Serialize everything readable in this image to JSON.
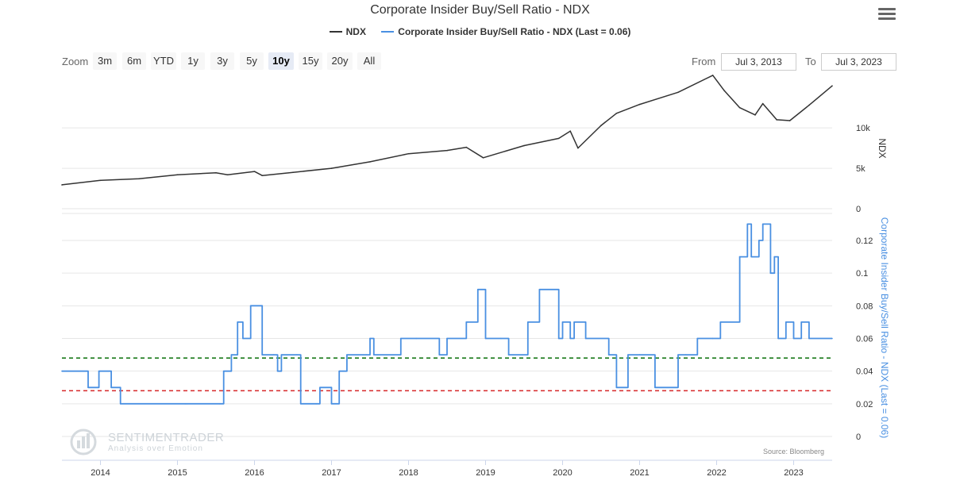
{
  "title": "Corporate Insider Buy/Sell Ratio - NDX",
  "legend": [
    {
      "name": "NDX",
      "color": "#333333"
    },
    {
      "name": "Corporate Insider Buy/Sell Ratio - NDX (Last = 0.06)",
      "color": "#4a90e2"
    }
  ],
  "menu_icon": "hamburger-menu-icon",
  "zoom": {
    "label": "Zoom",
    "buttons": [
      "3m",
      "6m",
      "YTD",
      "1y",
      "3y",
      "5y",
      "10y",
      "15y",
      "20y",
      "All"
    ],
    "active": "10y"
  },
  "range": {
    "from_label": "From",
    "from_value": "Jul 3, 2013",
    "to_label": "To",
    "to_value": "Jul 3, 2023"
  },
  "watermark": {
    "name": "SENTIMENTRADER",
    "tagline": "Analysis over Emotion"
  },
  "source": "Source: Bloomberg",
  "chart_data": [
    {
      "type": "line",
      "name": "NDX",
      "ylabel": "NDX",
      "ylim": [
        0,
        16000
      ],
      "yticks": [
        {
          "value": 0,
          "label": "0"
        },
        {
          "value": 5000,
          "label": "5k"
        },
        {
          "value": 10000,
          "label": "10k"
        }
      ],
      "x": [
        2013.5,
        2014.0,
        2014.5,
        2015.0,
        2015.5,
        2015.65,
        2016.0,
        2016.1,
        2016.5,
        2017.0,
        2017.5,
        2018.0,
        2018.5,
        2018.75,
        2018.97,
        2019.5,
        2019.95,
        2020.1,
        2020.2,
        2020.5,
        2020.7,
        2021.0,
        2021.5,
        2021.95,
        2022.1,
        2022.3,
        2022.5,
        2022.6,
        2022.78,
        2022.95,
        2023.2,
        2023.5
      ],
      "y": [
        2950,
        3500,
        3700,
        4200,
        4450,
        4200,
        4600,
        4100,
        4500,
        5000,
        5800,
        6800,
        7200,
        7600,
        6300,
        7800,
        8700,
        9600,
        7500,
        10300,
        11800,
        12900,
        14400,
        16500,
        14600,
        12500,
        11600,
        13000,
        11000,
        10900,
        12800,
        15200
      ]
    },
    {
      "type": "line",
      "name": "Corporate Insider Buy/Sell Ratio - NDX (Last = 0.06)",
      "ylabel": "Corporate Insider Buy/Sell Ratio - NDX (Last = 0.06)",
      "ylim": [
        0,
        0.13
      ],
      "yticks": [
        {
          "value": 0,
          "label": "0"
        },
        {
          "value": 0.02,
          "label": "0.02"
        },
        {
          "value": 0.04,
          "label": "0.04"
        },
        {
          "value": 0.06,
          "label": "0.06"
        },
        {
          "value": 0.08,
          "label": "0.08"
        },
        {
          "value": 0.1,
          "label": "0.1"
        },
        {
          "value": 0.12,
          "label": "0.12"
        }
      ],
      "x": [
        2013.5,
        2013.82,
        2013.84,
        2013.96,
        2013.98,
        2014.12,
        2014.14,
        2014.24,
        2014.26,
        2015.1,
        2015.12,
        2015.55,
        2015.6,
        2015.7,
        2015.78,
        2015.85,
        2015.95,
        2016.1,
        2016.25,
        2016.3,
        2016.35,
        2016.55,
        2016.6,
        2016.8,
        2016.85,
        2016.95,
        2017.0,
        2017.1,
        2017.15,
        2017.2,
        2017.45,
        2017.5,
        2017.55,
        2017.9,
        2018.1,
        2018.4,
        2018.5,
        2018.75,
        2018.9,
        2019.0,
        2019.2,
        2019.3,
        2019.55,
        2019.7,
        2019.75,
        2019.95,
        2020.0,
        2020.1,
        2020.15,
        2020.3,
        2020.6,
        2020.7,
        2020.85,
        2021.0,
        2021.2,
        2021.5,
        2021.6,
        2021.75,
        2021.95,
        2022.05,
        2022.3,
        2022.4,
        2022.45,
        2022.55,
        2022.6,
        2022.7,
        2022.75,
        2022.8,
        2022.9,
        2023.0,
        2023.1,
        2023.2,
        2023.5
      ],
      "y": [
        0.04,
        0.04,
        0.03,
        0.03,
        0.04,
        0.04,
        0.03,
        0.03,
        0.02,
        0.02,
        0.02,
        0.02,
        0.04,
        0.05,
        0.07,
        0.06,
        0.08,
        0.05,
        0.05,
        0.04,
        0.05,
        0.05,
        0.02,
        0.02,
        0.03,
        0.03,
        0.02,
        0.04,
        0.04,
        0.05,
        0.05,
        0.06,
        0.05,
        0.06,
        0.06,
        0.05,
        0.06,
        0.07,
        0.09,
        0.06,
        0.06,
        0.05,
        0.07,
        0.09,
        0.09,
        0.06,
        0.07,
        0.06,
        0.07,
        0.06,
        0.05,
        0.03,
        0.05,
        0.05,
        0.03,
        0.05,
        0.05,
        0.06,
        0.06,
        0.07,
        0.11,
        0.13,
        0.11,
        0.12,
        0.13,
        0.1,
        0.11,
        0.06,
        0.07,
        0.06,
        0.07,
        0.06,
        0.06
      ]
    }
  ],
  "reference_lines": [
    {
      "value": 0.048,
      "color": "#1a7a1a",
      "style": "dashed"
    },
    {
      "value": 0.028,
      "color": "#d62728",
      "style": "dashed"
    }
  ],
  "x_axis": {
    "ticks": [
      "2014",
      "2015",
      "2016",
      "2017",
      "2018",
      "2019",
      "2020",
      "2021",
      "2022",
      "2023"
    ]
  }
}
